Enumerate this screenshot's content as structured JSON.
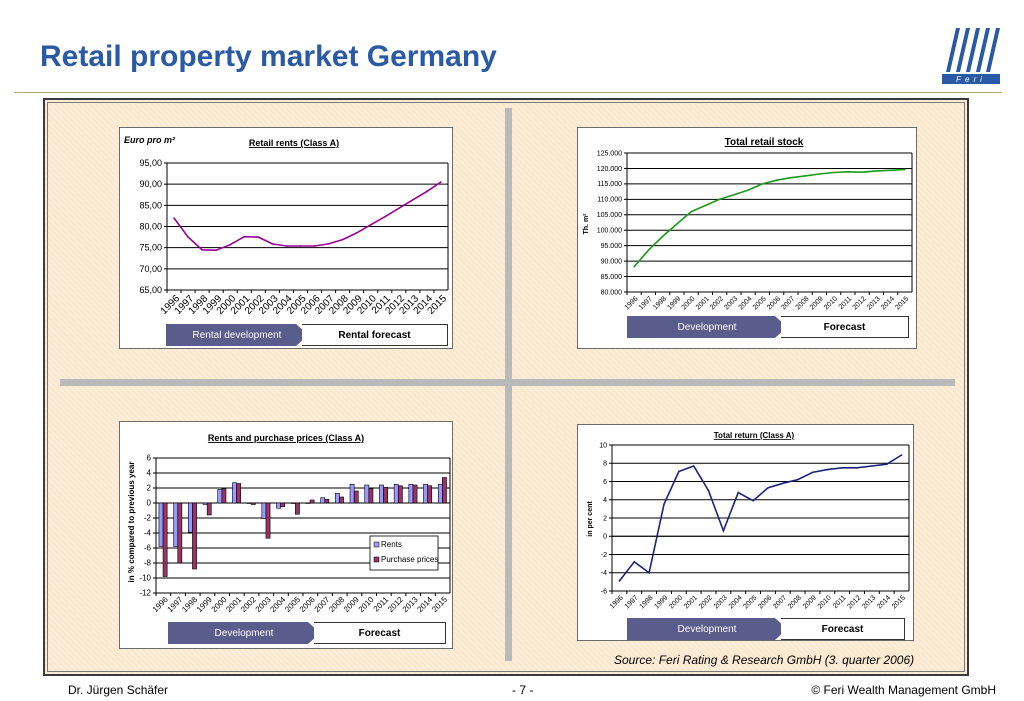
{
  "header": {
    "title": "Retail property market Germany",
    "logo_text": "Feri"
  },
  "colors": {
    "title": "#2a5aa5",
    "development": "#5a5c8c",
    "purple_line": "#990099",
    "green_line": "#1a9a1a",
    "navy_line": "#1a237e",
    "bar_rents": "#9999ff",
    "bar_purchase": "#993366"
  },
  "footer": {
    "author": "Dr. Jürgen Schäfer",
    "page": "- 7 -",
    "copyright": "© Feri Wealth Management GmbH"
  },
  "source": "Source: Feri Rating & Research GmbH (3. quarter 2006)",
  "chart_data": [
    {
      "id": "rents",
      "type": "line",
      "title": "Retail rents (Class A)",
      "ylabel": "Euro pro m²",
      "ylim": [
        65,
        95
      ],
      "y_ticks": [
        "65,00",
        "70,00",
        "75,00",
        "80,00",
        "85,00",
        "90,00",
        "95,00"
      ],
      "x": [
        "1996",
        "1997",
        "1998",
        "1999",
        "2000",
        "2001",
        "2002",
        "2003",
        "2004",
        "2005",
        "2006",
        "2007",
        "2008",
        "2009",
        "2010",
        "2011",
        "2012",
        "2013",
        "2014",
        "2015"
      ],
      "series": [
        {
          "values": [
            82.0,
            77.5,
            74.5,
            74.4,
            75.7,
            77.6,
            77.5,
            75.9,
            75.4,
            75.4,
            75.4,
            75.9,
            76.9,
            78.5,
            80.4,
            82.3,
            84.3,
            86.3,
            88.3,
            90.5
          ]
        }
      ],
      "legend_dev": "Rental development",
      "legend_fc": "Rental forecast"
    },
    {
      "id": "stock",
      "type": "line",
      "title": "Total retail stock",
      "ylabel": "Th. m²",
      "ylim": [
        80000,
        125000
      ],
      "y_ticks": [
        "80.000",
        "85.000",
        "90.000",
        "95.000",
        "100.000",
        "105.000",
        "110.000",
        "115.000",
        "120.000",
        "125.000"
      ],
      "x": [
        "1996",
        "1997",
        "1998",
        "1999",
        "2000",
        "2001",
        "2002",
        "2003",
        "2004",
        "2005",
        "2006",
        "2007",
        "2008",
        "2009",
        "2010",
        "2011",
        "2012",
        "2013",
        "2014",
        "2015"
      ],
      "series": [
        {
          "values": [
            88200,
            93500,
            98000,
            102000,
            106000,
            108000,
            110000,
            111500,
            113000,
            115000,
            116200,
            117000,
            117600,
            118200,
            118700,
            118900,
            118800,
            119200,
            119400,
            119700
          ]
        }
      ],
      "legend_dev": "Development",
      "legend_fc": "Forecast"
    },
    {
      "id": "prices",
      "type": "bar",
      "title": "Rents and purchase prices (Class A)",
      "ylabel": "in % compared to previous year",
      "ylim": [
        -12,
        6
      ],
      "y_ticks": [
        "-12",
        "-10",
        "-8",
        "-6",
        "-4",
        "-2",
        "0",
        "2",
        "4",
        "6"
      ],
      "categories": [
        "1996",
        "1997",
        "1998",
        "1999",
        "2000",
        "2001",
        "2002",
        "2003",
        "2004",
        "2005",
        "2006",
        "2007",
        "2008",
        "2009",
        "2010",
        "2011",
        "2012",
        "2013",
        "2014",
        "2015"
      ],
      "series": [
        {
          "name": "Rents",
          "values": [
            -5.8,
            -5.8,
            -3.9,
            -0.2,
            1.8,
            2.7,
            0.0,
            -2.1,
            -0.7,
            0.0,
            0.0,
            0.7,
            1.3,
            2.5,
            2.4,
            2.4,
            2.5,
            2.5,
            2.5,
            2.5
          ]
        },
        {
          "name": "Purchase prices",
          "values": [
            -9.8,
            -8.0,
            -8.8,
            -1.6,
            1.9,
            2.6,
            -0.2,
            -4.7,
            -0.5,
            -1.5,
            0.4,
            0.5,
            0.8,
            1.6,
            1.9,
            2.1,
            2.3,
            2.4,
            2.3,
            3.4
          ]
        }
      ],
      "legend_dev": "Development",
      "legend_fc": "Forecast"
    },
    {
      "id": "return",
      "type": "line",
      "title": "Total return (Class A)",
      "ylabel": "in per cent",
      "ylim": [
        -6,
        10
      ],
      "y_ticks": [
        "-6",
        "-4",
        "-2",
        "0",
        "2",
        "4",
        "6",
        "8",
        "10"
      ],
      "x": [
        "1996",
        "1997",
        "1998",
        "1999",
        "2000",
        "2001",
        "2002",
        "2003",
        "2004",
        "2005",
        "2006",
        "2007",
        "2008",
        "2009",
        "2010",
        "2011",
        "2012",
        "2013",
        "2014",
        "2015"
      ],
      "series": [
        {
          "values": [
            -4.9,
            -2.8,
            -4.0,
            3.5,
            7.1,
            7.7,
            5.0,
            0.6,
            4.8,
            3.9,
            5.3,
            5.8,
            6.2,
            7.0,
            7.3,
            7.5,
            7.5,
            7.7,
            7.9,
            8.9
          ]
        }
      ],
      "legend_dev": "Development",
      "legend_fc": "Forecast"
    }
  ]
}
